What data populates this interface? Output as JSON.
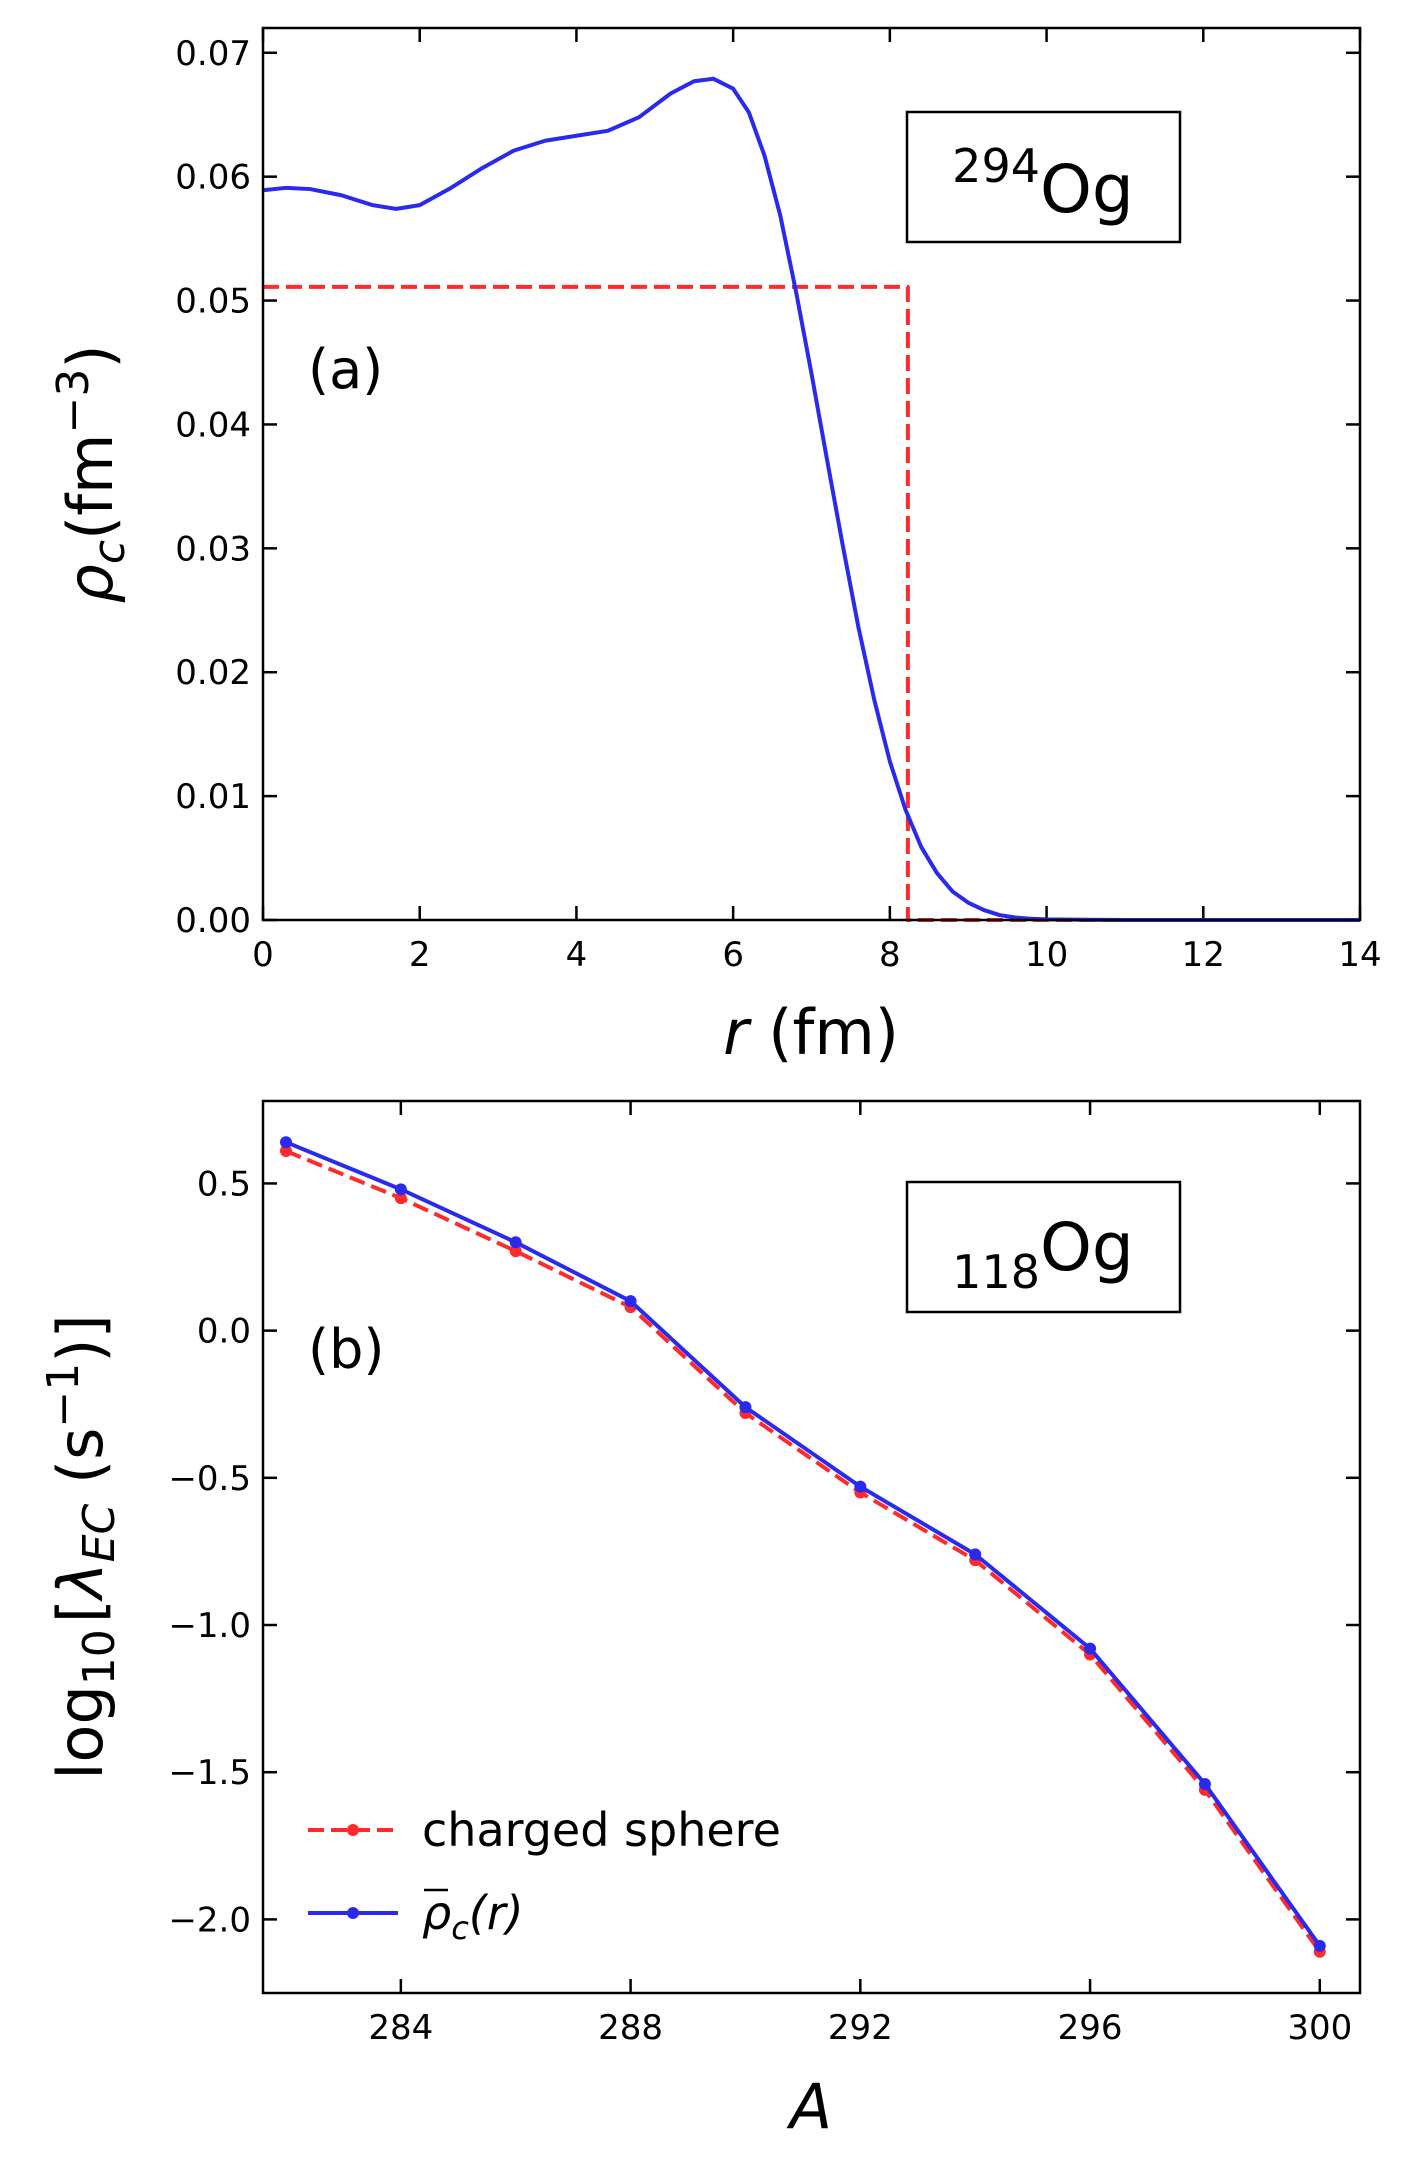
{
  "colors": {
    "red": "#ff2a2a",
    "blue": "#2a2aee",
    "axes": "#000000"
  },
  "chart_data": [
    {
      "type": "line",
      "panel_label": "(a)",
      "annotation": {
        "superscript": "294",
        "element": "Og"
      },
      "xlabel": "r (fm)",
      "ylabel": "ρ_c(fm^-3)",
      "xlabel_var": "r",
      "xlabel_unit": " (fm)",
      "ylabel_main": "ρ",
      "ylabel_sub": "c",
      "ylabel_unit_open": "(fm",
      "ylabel_sup": "−3",
      "ylabel_close": ")",
      "xlim": [
        0,
        14
      ],
      "ylim": [
        0,
        0.072
      ],
      "xticks": [
        0,
        2,
        4,
        6,
        8,
        10,
        12,
        14
      ],
      "xtick_labels": [
        "0",
        "2",
        "4",
        "6",
        "8",
        "10",
        "12",
        "14"
      ],
      "yticks": [
        0.0,
        0.01,
        0.02,
        0.03,
        0.04,
        0.05,
        0.06,
        0.07
      ],
      "ytick_labels": [
        "0.00",
        "0.01",
        "0.02",
        "0.03",
        "0.04",
        "0.05",
        "0.06",
        "0.07"
      ],
      "series": [
        {
          "name": "charged sphere",
          "style": "dashed",
          "color": "red",
          "x": [
            0,
            8.23,
            8.23,
            14
          ],
          "y": [
            0.0511,
            0.0511,
            0.0,
            0.0
          ]
        },
        {
          "name": "ρc(r)",
          "style": "solid",
          "color": "blue",
          "x": [
            0,
            0.3,
            0.6,
            1.0,
            1.4,
            1.7,
            2.0,
            2.4,
            2.8,
            3.2,
            3.6,
            4.0,
            4.4,
            4.8,
            5.2,
            5.5,
            5.75,
            6.0,
            6.2,
            6.4,
            6.6,
            6.8,
            7.0,
            7.2,
            7.4,
            7.6,
            7.8,
            8.0,
            8.2,
            8.4,
            8.6,
            8.8,
            9.0,
            9.2,
            9.4,
            9.6,
            9.8,
            10.0,
            10.5,
            11,
            12,
            13,
            14
          ],
          "y": [
            0.0589,
            0.0591,
            0.059,
            0.0585,
            0.0577,
            0.0574,
            0.0577,
            0.0591,
            0.0607,
            0.0621,
            0.0629,
            0.0633,
            0.0637,
            0.0648,
            0.0667,
            0.0677,
            0.0679,
            0.0671,
            0.0652,
            0.0617,
            0.0569,
            0.0508,
            0.0441,
            0.0371,
            0.0302,
            0.0236,
            0.0178,
            0.0128,
            0.0089,
            0.0059,
            0.0038,
            0.0023,
            0.0014,
            0.0008,
            0.0004,
            0.0002,
            0.0001,
            5e-05,
            2e-05,
            0.0,
            0.0,
            0.0,
            0.0
          ]
        }
      ]
    },
    {
      "type": "line",
      "panel_label": "(b)",
      "annotation": {
        "subscript": "118",
        "element": "Og"
      },
      "xlabel": "A",
      "ylabel": "log10[λ_EC (s^-1)]",
      "ylabel_log": "log",
      "ylabel_log_sub": "10",
      "ylabel_bracket": "[",
      "ylabel_lambda": "λ",
      "ylabel_lambda_sub": "EC",
      "ylabel_unit_open": " (s",
      "ylabel_sup": "−1",
      "ylabel_close": ")]",
      "xlim": [
        281.6,
        300.7
      ],
      "ylim": [
        -2.25,
        0.78
      ],
      "xticks": [
        284,
        288,
        292,
        296,
        300
      ],
      "xtick_labels": [
        "284",
        "288",
        "292",
        "296",
        "300"
      ],
      "yticks": [
        0.5,
        0.0,
        -0.5,
        -1.0,
        -1.5,
        -2.0
      ],
      "ytick_labels": [
        "0.5",
        "0.0",
        "−0.5",
        "−1.0",
        "−1.5",
        "−2.0"
      ],
      "x": [
        282,
        284,
        286,
        288,
        290,
        292,
        294,
        296,
        298,
        300
      ],
      "series": [
        {
          "name": "charged sphere",
          "style": "dashed",
          "color": "red",
          "values": [
            0.61,
            0.45,
            0.27,
            0.08,
            -0.28,
            -0.55,
            -0.78,
            -1.1,
            -1.56,
            -2.11
          ]
        },
        {
          "name": "ρc(r)",
          "style": "solid",
          "color": "blue",
          "values": [
            0.64,
            0.48,
            0.3,
            0.1,
            -0.26,
            -0.53,
            -0.76,
            -1.08,
            -1.54,
            -2.09
          ]
        }
      ],
      "legend": {
        "position": "lower-left",
        "entries": [
          {
            "label": "charged sphere"
          },
          {
            "label_main": "ρ",
            "label_sub": "c",
            "label_rest": "(r)"
          }
        ]
      }
    }
  ]
}
